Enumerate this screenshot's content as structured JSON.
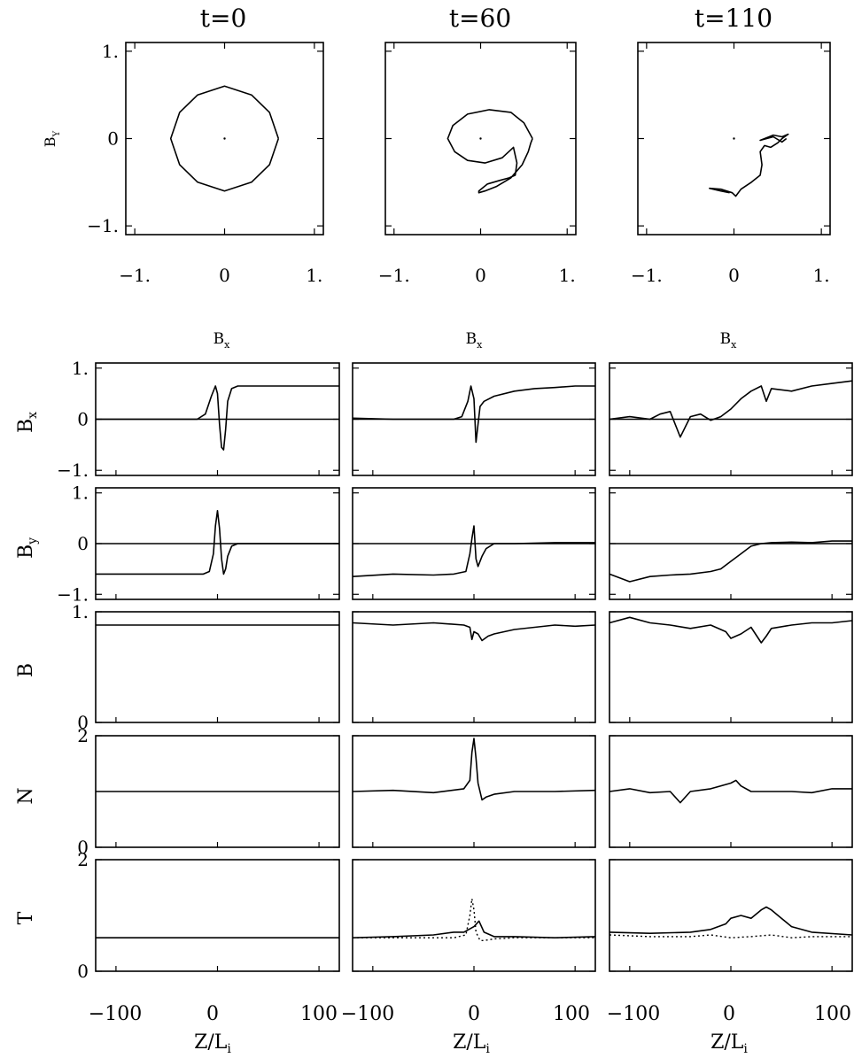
{
  "top_titles": [
    "t=0",
    "t=60",
    "t=110"
  ],
  "hodo_ylabel": "B",
  "hodo_ylabel_sub": "Y",
  "hodo_yticks": [
    "1.",
    "0",
    "−1."
  ],
  "hodo_xticks": [
    "−1.",
    "0",
    "1."
  ],
  "col_labels": [
    {
      "main": "B",
      "sub": "x"
    },
    {
      "main": "B",
      "sub": "x"
    },
    {
      "main": "B",
      "sub": "x"
    }
  ],
  "row_labels": [
    {
      "main": "B",
      "sub": "x"
    },
    {
      "main": "B",
      "sub": "y"
    },
    {
      "main": "B",
      "sub": ""
    },
    {
      "main": "N",
      "sub": ""
    },
    {
      "main": "T",
      "sub": ""
    }
  ],
  "row_yticks": [
    [
      "1.",
      "0",
      "−1."
    ],
    [
      "1.",
      "0",
      "−1."
    ],
    [
      "1.",
      "0"
    ],
    [
      "2",
      "0"
    ],
    [
      "2",
      "0"
    ]
  ],
  "x_ticks": [
    [
      "−100",
      "0",
      "100"
    ],
    [
      "−100",
      "0",
      "100"
    ],
    [
      "−100",
      "0",
      "100"
    ]
  ],
  "xlabel": {
    "main": "Z/L",
    "sub": "i"
  },
  "chart_data": [
    {
      "type": "line",
      "panel": "hodograph",
      "title": "t=0",
      "xlabel": "",
      "ylabel": "B_Y",
      "xlim": [
        -1.1,
        1.1
      ],
      "ylim": [
        -1.1,
        1.1
      ],
      "series": [
        {
          "x": [
            0.6,
            0.5,
            0.3,
            0,
            -0.3,
            -0.5,
            -0.6,
            -0.5,
            -0.3,
            0,
            0.3,
            0.5,
            0.6
          ],
          "y": [
            0,
            0.3,
            0.5,
            0.6,
            0.5,
            0.3,
            0,
            -0.3,
            -0.5,
            -0.6,
            -0.5,
            -0.3,
            0
          ]
        }
      ]
    },
    {
      "type": "line",
      "panel": "hodograph",
      "title": "t=60",
      "xlabel": "",
      "ylabel": "B_Y",
      "xlim": [
        -1.1,
        1.1
      ],
      "ylim": [
        -1.1,
        1.1
      ],
      "series": [
        {
          "x": [
            0.6,
            0.5,
            0.35,
            0.1,
            -0.15,
            -0.32,
            -0.38,
            -0.3,
            -0.15,
            0.05,
            0.25,
            0.38,
            0.42,
            0.4,
            0.33,
            0.22,
            0.08,
            -0.02,
            -0.02,
            0.05,
            0.18,
            0.35,
            0.48,
            0.55,
            0.58,
            0.6
          ],
          "y": [
            0,
            0.18,
            0.3,
            0.33,
            0.28,
            0.15,
            0,
            -0.15,
            -0.25,
            -0.28,
            -0.22,
            -0.1,
            -0.28,
            -0.42,
            -0.45,
            -0.48,
            -0.52,
            -0.6,
            -0.62,
            -0.6,
            -0.55,
            -0.45,
            -0.3,
            -0.15,
            -0.05,
            0
          ]
        }
      ]
    },
    {
      "type": "line",
      "panel": "hodograph",
      "title": "t=110",
      "xlabel": "",
      "ylabel": "B_Y",
      "xlim": [
        -1.1,
        1.1
      ],
      "ylim": [
        -1.1,
        1.1
      ],
      "series": [
        {
          "x": [
            -0.05,
            -0.15,
            -0.28,
            -0.15,
            -0.02,
            0.02,
            0.08,
            0.2,
            0.3,
            0.32,
            0.3,
            0.35,
            0.42,
            0.5,
            0.55,
            0.62,
            0.55,
            0.45,
            0.3,
            0.45,
            0.55,
            0.6
          ],
          "y": [
            -0.62,
            -0.6,
            -0.57,
            -0.58,
            -0.62,
            -0.66,
            -0.58,
            -0.5,
            -0.42,
            -0.3,
            -0.15,
            -0.08,
            -0.1,
            -0.05,
            0,
            0.05,
            0.02,
            0.04,
            -0.02,
            0.02,
            -0.04,
            0
          ]
        }
      ]
    },
    {
      "type": "line",
      "panel": "Bx",
      "title": "t=0",
      "xlabel": "Z/L_i",
      "ylabel": "B_x",
      "xlim": [
        -120,
        120
      ],
      "ylim": [
        -1.1,
        1.1
      ],
      "series": [
        {
          "x": [
            -120,
            -20,
            -12,
            -6,
            -2,
            0,
            2,
            4,
            6,
            8,
            10,
            14,
            20,
            120
          ],
          "y": [
            0,
            0,
            0.1,
            0.45,
            0.65,
            0.5,
            -0.1,
            -0.55,
            -0.6,
            -0.2,
            0.35,
            0.6,
            0.65,
            0.65
          ]
        }
      ]
    },
    {
      "type": "line",
      "panel": "Bx",
      "title": "t=60",
      "xlabel": "Z/L_i",
      "ylabel": "B_x",
      "xlim": [
        -120,
        120
      ],
      "ylim": [
        -1.1,
        1.1
      ],
      "series": [
        {
          "x": [
            -120,
            -80,
            -40,
            -20,
            -12,
            -6,
            -3,
            0,
            2,
            4,
            6,
            10,
            20,
            40,
            60,
            80,
            100,
            120
          ],
          "y": [
            0.02,
            0,
            0,
            0,
            0.05,
            0.35,
            0.65,
            0.4,
            -0.45,
            -0.1,
            0.25,
            0.35,
            0.45,
            0.55,
            0.6,
            0.62,
            0.65,
            0.65
          ]
        }
      ]
    },
    {
      "type": "line",
      "panel": "Bx",
      "title": "t=110",
      "xlabel": "Z/L_i",
      "ylabel": "B_x",
      "xlim": [
        -120,
        120
      ],
      "ylim": [
        -1.1,
        1.1
      ],
      "series": [
        {
          "x": [
            -120,
            -100,
            -80,
            -70,
            -60,
            -50,
            -40,
            -30,
            -20,
            -10,
            0,
            10,
            20,
            30,
            35,
            40,
            60,
            80,
            100,
            120
          ],
          "y": [
            0,
            0.05,
            0,
            0.1,
            0.15,
            -0.35,
            0.05,
            0.1,
            -0.02,
            0.05,
            0.2,
            0.4,
            0.55,
            0.65,
            0.35,
            0.6,
            0.55,
            0.65,
            0.7,
            0.75
          ]
        }
      ]
    },
    {
      "type": "line",
      "panel": "By",
      "title": "t=0",
      "xlabel": "Z/L_i",
      "ylabel": "B_y",
      "xlim": [
        -120,
        120
      ],
      "ylim": [
        -1.1,
        1.1
      ],
      "series": [
        {
          "x": [
            -120,
            -14,
            -8,
            -4,
            -2,
            0,
            2,
            4,
            6,
            8,
            10,
            14,
            20,
            120
          ],
          "y": [
            -0.6,
            -0.6,
            -0.55,
            -0.2,
            0.35,
            0.65,
            0.3,
            -0.3,
            -0.6,
            -0.5,
            -0.25,
            -0.05,
            0,
            0
          ]
        }
      ]
    },
    {
      "type": "line",
      "panel": "By",
      "title": "t=60",
      "xlabel": "Z/L_i",
      "ylabel": "B_y",
      "xlim": [
        -120,
        120
      ],
      "ylim": [
        -1.1,
        1.1
      ],
      "series": [
        {
          "x": [
            -120,
            -80,
            -40,
            -20,
            -8,
            -4,
            -2,
            0,
            2,
            4,
            8,
            12,
            20,
            40,
            80,
            120
          ],
          "y": [
            -0.65,
            -0.6,
            -0.62,
            -0.6,
            -0.55,
            -0.2,
            0.1,
            0.35,
            -0.3,
            -0.45,
            -0.25,
            -0.1,
            0,
            0,
            0.02,
            0.02
          ]
        }
      ]
    },
    {
      "type": "line",
      "panel": "By",
      "title": "t=110",
      "xlabel": "Z/L_i",
      "ylabel": "B_y",
      "xlim": [
        -120,
        120
      ],
      "ylim": [
        -1.1,
        1.1
      ],
      "series": [
        {
          "x": [
            -120,
            -100,
            -80,
            -60,
            -40,
            -20,
            -10,
            0,
            10,
            20,
            30,
            40,
            60,
            80,
            100,
            120
          ],
          "y": [
            -0.6,
            -0.75,
            -0.65,
            -0.62,
            -0.6,
            -0.55,
            -0.5,
            -0.35,
            -0.2,
            -0.05,
            0,
            0.02,
            0.03,
            0.02,
            0.05,
            0.05
          ]
        }
      ]
    },
    {
      "type": "line",
      "panel": "B",
      "title": "t=0",
      "xlabel": "Z/L_i",
      "ylabel": "B",
      "xlim": [
        -120,
        120
      ],
      "ylim": [
        0,
        1.0
      ],
      "series": [
        {
          "x": [
            -120,
            120
          ],
          "y": [
            0.88,
            0.88
          ]
        }
      ]
    },
    {
      "type": "line",
      "panel": "B",
      "title": "t=60",
      "xlabel": "Z/L_i",
      "ylabel": "B",
      "xlim": [
        -120,
        120
      ],
      "ylim": [
        0,
        1.0
      ],
      "series": [
        {
          "x": [
            -120,
            -80,
            -40,
            -10,
            -4,
            -2,
            0,
            4,
            8,
            14,
            20,
            40,
            60,
            80,
            100,
            120
          ],
          "y": [
            0.9,
            0.88,
            0.9,
            0.88,
            0.86,
            0.75,
            0.82,
            0.8,
            0.74,
            0.78,
            0.8,
            0.84,
            0.86,
            0.88,
            0.87,
            0.88
          ]
        }
      ]
    },
    {
      "type": "line",
      "panel": "B",
      "title": "t=110",
      "xlabel": "Z/L_i",
      "ylabel": "B",
      "xlim": [
        -120,
        120
      ],
      "ylim": [
        0,
        1.0
      ],
      "series": [
        {
          "x": [
            -120,
            -100,
            -80,
            -60,
            -40,
            -20,
            -5,
            0,
            10,
            20,
            30,
            35,
            40,
            60,
            80,
            100,
            120
          ],
          "y": [
            0.9,
            0.95,
            0.9,
            0.88,
            0.85,
            0.88,
            0.82,
            0.76,
            0.8,
            0.86,
            0.72,
            0.78,
            0.85,
            0.88,
            0.9,
            0.9,
            0.92
          ]
        }
      ]
    },
    {
      "type": "line",
      "panel": "N",
      "title": "t=0",
      "xlabel": "Z/L_i",
      "ylabel": "N",
      "xlim": [
        -120,
        120
      ],
      "ylim": [
        0,
        2.0
      ],
      "series": [
        {
          "x": [
            -120,
            120
          ],
          "y": [
            1.0,
            1.0
          ]
        }
      ]
    },
    {
      "type": "line",
      "panel": "N",
      "title": "t=60",
      "xlabel": "Z/L_i",
      "ylabel": "N",
      "xlim": [
        -120,
        120
      ],
      "ylim": [
        0,
        2.0
      ],
      "series": [
        {
          "x": [
            -120,
            -80,
            -40,
            -10,
            -4,
            -2,
            0,
            2,
            4,
            8,
            12,
            20,
            40,
            80,
            120
          ],
          "y": [
            1.0,
            1.02,
            0.98,
            1.05,
            1.2,
            1.7,
            1.95,
            1.6,
            1.15,
            0.85,
            0.9,
            0.95,
            1.0,
            1.0,
            1.02
          ]
        }
      ]
    },
    {
      "type": "line",
      "panel": "N",
      "title": "t=110",
      "xlabel": "Z/L_i",
      "ylabel": "N",
      "xlim": [
        -120,
        120
      ],
      "ylim": [
        0,
        2.0
      ],
      "series": [
        {
          "x": [
            -120,
            -100,
            -80,
            -60,
            -50,
            -40,
            -20,
            0,
            5,
            10,
            20,
            40,
            60,
            80,
            100,
            120
          ],
          "y": [
            1.0,
            1.05,
            0.98,
            1.0,
            0.8,
            1.0,
            1.05,
            1.15,
            1.2,
            1.1,
            1.0,
            1.0,
            1.0,
            0.98,
            1.05,
            1.05
          ]
        }
      ]
    },
    {
      "type": "line",
      "panel": "T",
      "title": "t=0",
      "xlabel": "Z/L_i",
      "ylabel": "T",
      "xlim": [
        -120,
        120
      ],
      "ylim": [
        0,
        2.0
      ],
      "series": [
        {
          "name": "",
          "x": [
            -120,
            120
          ],
          "y": [
            0.6,
            0.6
          ]
        }
      ]
    },
    {
      "type": "line",
      "panel": "T",
      "title": "t=60",
      "xlabel": "Z/L_i",
      "ylabel": "T",
      "xlim": [
        -120,
        120
      ],
      "ylim": [
        0,
        2.0
      ],
      "series": [
        {
          "x": [
            -120,
            -80,
            -40,
            -20,
            -10,
            0,
            5,
            10,
            20,
            40,
            80,
            120
          ],
          "y": [
            0.6,
            0.62,
            0.65,
            0.7,
            0.7,
            0.8,
            0.9,
            0.7,
            0.62,
            0.62,
            0.6,
            0.62
          ]
        },
        {
          "x": [
            -120,
            -80,
            -40,
            -20,
            -8,
            -4,
            -2,
            0,
            2,
            6,
            10,
            20,
            40,
            80,
            120
          ],
          "y": [
            0.6,
            0.6,
            0.6,
            0.6,
            0.65,
            1.0,
            1.3,
            1.1,
            0.7,
            0.55,
            0.55,
            0.58,
            0.6,
            0.6,
            0.6
          ]
        }
      ]
    },
    {
      "type": "line",
      "panel": "T",
      "title": "t=110",
      "xlabel": "Z/L_i",
      "ylabel": "T",
      "xlim": [
        -120,
        120
      ],
      "ylim": [
        0,
        2.0
      ],
      "series": [
        {
          "x": [
            -120,
            -80,
            -40,
            -20,
            -5,
            0,
            10,
            20,
            30,
            35,
            40,
            50,
            60,
            80,
            120
          ],
          "y": [
            0.7,
            0.68,
            0.7,
            0.75,
            0.85,
            0.95,
            1.0,
            0.95,
            1.1,
            1.15,
            1.1,
            0.95,
            0.8,
            0.7,
            0.65
          ]
        },
        {
          "x": [
            -120,
            -80,
            -40,
            -20,
            0,
            20,
            40,
            60,
            80,
            120
          ],
          "y": [
            0.65,
            0.62,
            0.62,
            0.65,
            0.6,
            0.62,
            0.65,
            0.6,
            0.62,
            0.62
          ]
        }
      ]
    }
  ]
}
